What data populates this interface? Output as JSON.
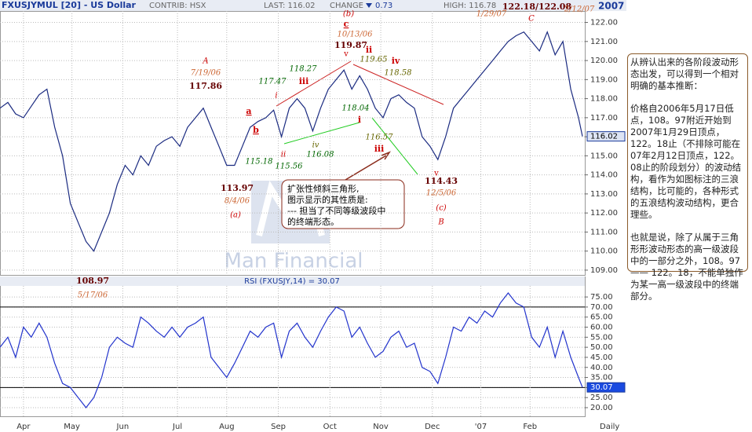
{
  "header": {
    "symbol": "FXUSJYMUL [20] - US Dollar",
    "contrib": "CONTRIB: HSX",
    "last": "LAST: 116.02",
    "change": "CHANGE",
    "change_value": "0.73",
    "high": "HIGH: 116.78",
    "year": "2007"
  },
  "note": [
    "从辨认出来的各阶段波动形态出发，可以得到一个相对明确的基本推断：",
    "价格自2006年5月17日低点，108。97附近开始到2007年1月29日顶点，122。18止（不排除可能在07年2月12日顶点，122。08止的阶段划分）的波动结构，看作为如图标注的三浪结构，比可能的，各种形式的五浪结构波动结构，更合理些。",
    "也就是说，除了从属于三角形形波动形态的高一级波段中的一部分之外，108。97 —— 122。18，不能单独作为某一高一级波段中的终端部分。"
  ],
  "chart_data": [
    {
      "type": "line",
      "watermark": "Man Financial",
      "x": [
        0,
        10,
        20,
        30,
        40,
        50,
        60,
        70,
        80,
        90,
        100,
        110,
        120,
        130,
        140,
        150,
        160,
        170,
        180,
        190,
        200,
        210,
        220,
        230,
        240,
        250,
        260,
        270,
        280,
        290,
        300,
        310,
        320,
        330,
        340,
        350,
        360,
        370,
        380,
        390,
        400,
        410,
        420,
        430,
        440,
        450,
        460,
        470,
        480,
        490,
        500,
        510,
        520,
        530,
        540,
        550,
        560,
        570,
        580,
        590,
        600,
        610,
        620,
        630,
        640,
        650,
        660,
        670,
        680,
        690,
        700,
        710,
        720,
        730,
        740,
        745
      ],
      "series": [
        {
          "name": "FXUSJYMUL",
          "color": "#1a2a80",
          "values": [
            117.5,
            117.8,
            117.2,
            117.0,
            117.6,
            118.2,
            118.5,
            116.5,
            115.0,
            112.5,
            111.5,
            110.5,
            110.0,
            111.0,
            112.0,
            113.5,
            114.5,
            114.0,
            115.0,
            114.5,
            115.5,
            115.8,
            116.0,
            115.5,
            116.5,
            117.0,
            117.5,
            116.5,
            115.5,
            114.5,
            114.5,
            115.5,
            116.5,
            116.8,
            117.0,
            117.4,
            116.0,
            117.5,
            118.0,
            117.5,
            116.3,
            117.5,
            118.5,
            119.0,
            119.5,
            118.5,
            119.2,
            118.5,
            117.5,
            117.0,
            118.0,
            118.2,
            117.8,
            117.5,
            116.0,
            115.5,
            114.8,
            116.0,
            117.5,
            118.0,
            118.5,
            119.0,
            119.5,
            120.0,
            120.5,
            121.0,
            121.3,
            121.5,
            121.0,
            120.5,
            121.5,
            120.3,
            121.0,
            118.5,
            117.0,
            116.02
          ]
        }
      ],
      "last_label": "116.02",
      "xlim": [
        0,
        748
      ],
      "ylim": [
        108.75,
        122.6
      ],
      "xticks": [
        {
          "value": 30,
          "label": "Apr"
        },
        {
          "value": 92,
          "label": "May"
        },
        {
          "value": 157,
          "label": "Jun"
        },
        {
          "value": 227,
          "label": "Jul"
        },
        {
          "value": 290,
          "label": "Aug"
        },
        {
          "value": 356,
          "label": "Sep"
        },
        {
          "value": 422,
          "label": "Oct"
        },
        {
          "value": 487,
          "label": "Nov"
        },
        {
          "value": 553,
          "label": "Dec"
        },
        {
          "value": 615,
          "label": "'07"
        },
        {
          "value": 678,
          "label": "Feb"
        }
      ],
      "x_unit_label": "Daily",
      "yticks": [
        {
          "value": 109,
          "label": "109.00"
        },
        {
          "value": 110,
          "label": "110.00"
        },
        {
          "value": 111,
          "label": "111.00"
        },
        {
          "value": 112,
          "label": "112.00"
        },
        {
          "value": 113,
          "label": "113.00"
        },
        {
          "value": 114,
          "label": "114.00"
        },
        {
          "value": 115,
          "label": "115.00"
        },
        {
          "value": 116,
          "label": "116.00"
        },
        {
          "value": 117,
          "label": "117.00"
        },
        {
          "value": 118,
          "label": "118.00"
        },
        {
          "value": 119,
          "label": "119.00"
        },
        {
          "value": 120,
          "label": "120.00"
        },
        {
          "value": 121,
          "label": "121.00"
        },
        {
          "value": 122,
          "label": "122.00"
        }
      ],
      "grid": true,
      "annotations": [
        "(b)",
        "c",
        "10/13/06",
        "119.87",
        "v",
        "ii",
        "119.65",
        "iv",
        "118.58",
        "A",
        "7/19/06",
        "117.86",
        "118.27",
        "117.47",
        "iii",
        "i",
        "a",
        "b",
        "118.04",
        "i",
        "116.57",
        "iii",
        "iv",
        "ii",
        "115.18",
        "115.56",
        "116.08",
        "113.97",
        "8/4/06",
        "(a)",
        "v",
        "114.43",
        "12/5/06",
        "(c)",
        "B",
        "1/29/07",
        "122.18/122.08",
        "C",
        "2/12/07",
        "108.97",
        "5/17/06"
      ],
      "callout": [
        "扩张性倾斜三角形,",
        "图示显示的其性质是:",
        "--- 担当了不同等级波段中",
        "的终端形态。"
      ]
    },
    {
      "type": "line",
      "title": "RSI (FXUSJY,14) = 30.07",
      "x": [
        0,
        10,
        20,
        30,
        40,
        50,
        60,
        70,
        80,
        90,
        100,
        110,
        120,
        130,
        140,
        150,
        160,
        170,
        180,
        190,
        200,
        210,
        220,
        230,
        240,
        250,
        260,
        270,
        280,
        290,
        300,
        310,
        320,
        330,
        340,
        350,
        360,
        370,
        380,
        390,
        400,
        410,
        420,
        430,
        440,
        450,
        460,
        470,
        480,
        490,
        500,
        510,
        520,
        530,
        540,
        550,
        560,
        570,
        580,
        590,
        600,
        610,
        620,
        630,
        640,
        650,
        660,
        670,
        680,
        690,
        700,
        710,
        720,
        730,
        740,
        745
      ],
      "series": [
        {
          "name": "RSI",
          "color": "#2233cc",
          "values": [
            50,
            55,
            45,
            60,
            55,
            62,
            55,
            42,
            32,
            30,
            25,
            20,
            25,
            35,
            50,
            55,
            52,
            50,
            65,
            62,
            58,
            55,
            60,
            55,
            60,
            62,
            65,
            45,
            40,
            35,
            42,
            50,
            58,
            55,
            60,
            62,
            45,
            58,
            62,
            55,
            50,
            58,
            65,
            70,
            68,
            55,
            60,
            52,
            45,
            48,
            55,
            58,
            50,
            52,
            40,
            38,
            32,
            45,
            60,
            58,
            65,
            62,
            68,
            65,
            72,
            77,
            72,
            70,
            55,
            50,
            60,
            45,
            58,
            45,
            35,
            30.07
          ]
        }
      ],
      "last_label": "30.07",
      "xlim": [
        0,
        748
      ],
      "ylim": [
        15.7,
        80.5
      ],
      "yticks": [
        {
          "value": 20,
          "label": "20.00"
        },
        {
          "value": 25,
          "label": "25.00"
        },
        {
          "value": 30,
          "label": "30.00"
        },
        {
          "value": 35,
          "label": "35.00"
        },
        {
          "value": 40,
          "label": "40.00"
        },
        {
          "value": 45,
          "label": "45.00"
        },
        {
          "value": 50,
          "label": "50.00"
        },
        {
          "value": 55,
          "label": "55.00"
        },
        {
          "value": 60,
          "label": "60.00"
        },
        {
          "value": 65,
          "label": "65.00"
        },
        {
          "value": 70,
          "label": "70.00"
        },
        {
          "value": 75,
          "label": "75.00"
        }
      ],
      "hlines": [
        70,
        30
      ],
      "grid": true
    }
  ]
}
